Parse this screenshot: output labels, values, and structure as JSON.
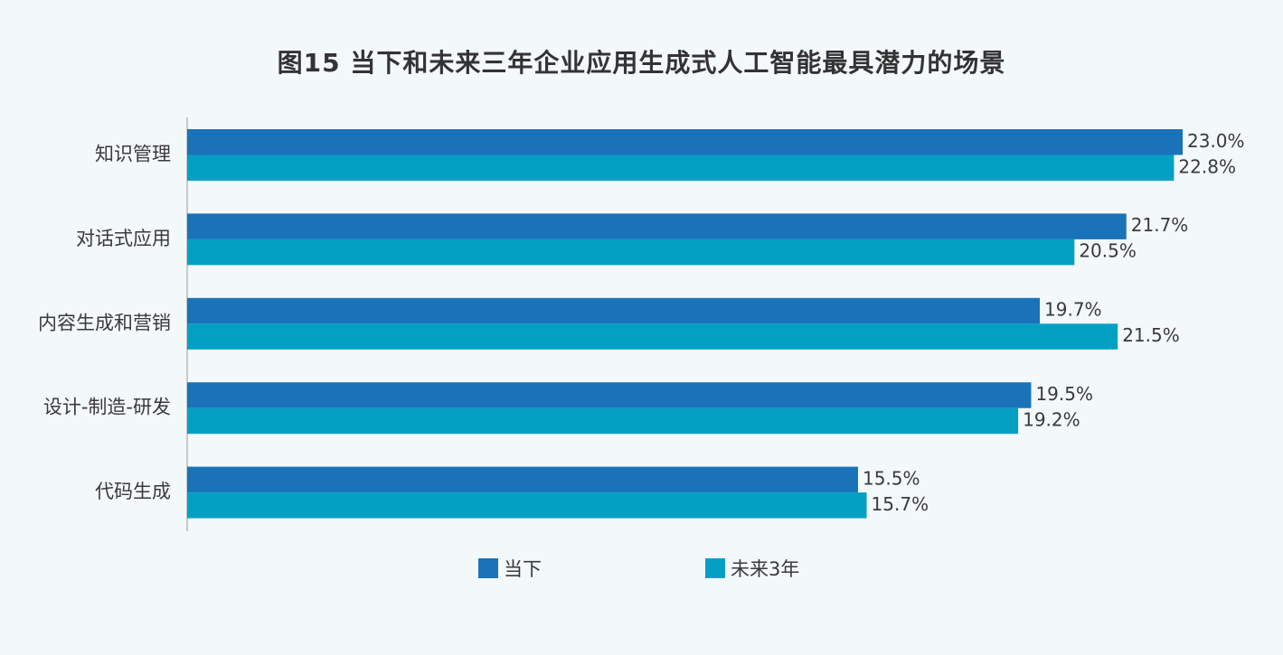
{
  "title": "图15 当下和未来三年企业应用生成式人工智能最具潜力的场景",
  "colors": {
    "current": "#1a73b8",
    "future": "#03a0c4",
    "axis": "#c8c8c8",
    "background": "#f3f8fb"
  },
  "chart_data": {
    "type": "bar",
    "orientation": "horizontal",
    "title": "图15 当下和未来三年企业应用生成式人工智能最具潜力的场景",
    "categories": [
      "知识管理",
      "对话式应用",
      "内容生成和营销",
      "设计-制造-研发",
      "代码生成"
    ],
    "series": [
      {
        "name": "当下",
        "values": [
          23.0,
          21.7,
          19.7,
          19.5,
          15.5
        ],
        "labels": [
          "23.0%",
          "21.7%",
          "19.7%",
          "19.5%",
          "15.5%"
        ]
      },
      {
        "name": "未来3年",
        "values": [
          22.8,
          20.5,
          21.5,
          19.2,
          15.7
        ],
        "labels": [
          "22.8%",
          "20.5%",
          "21.5%",
          "19.2%",
          "15.7%"
        ]
      }
    ],
    "xlim": [
      0,
      23.0
    ],
    "grid": false,
    "legend_position": "bottom"
  }
}
